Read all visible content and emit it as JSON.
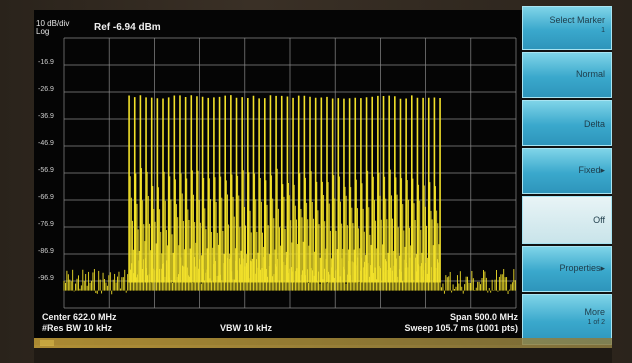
{
  "header": {
    "scale": "10 dB/div",
    "scale_mode": "Log",
    "ref_level": "Ref -6.94 dBm"
  },
  "y_axis_labels": [
    "-16.9",
    "-26.9",
    "-36.9",
    "-46.9",
    "-56.9",
    "-66.9",
    "-76.9",
    "-86.9",
    "-96.9"
  ],
  "footer": {
    "center": "Center 622.0 MHz",
    "span": "Span 500.0 MHz",
    "res_bw": "#Res BW 10 kHz",
    "vbw": "VBW 10 kHz",
    "sweep": "Sweep  105.7 ms (1001 pts)"
  },
  "softkeys": {
    "title": "Select Marker",
    "title_sub": "1",
    "normal": "Normal",
    "delta": "Delta",
    "fixed": "Fixed▸",
    "off": "Off",
    "properties": "Properties▸",
    "more": "More",
    "more_sub": "1 of 2"
  },
  "colors": {
    "trace": "#f2e12a",
    "softkey": "#3aa8cc",
    "grid": "#8a8a8a"
  },
  "chart_data": {
    "type": "line",
    "ylim": [
      -106.94,
      -6.94
    ],
    "xlim": [
      372.0,
      872.0
    ],
    "grid": true,
    "carriers": {
      "start_mhz": 444,
      "end_mhz": 788,
      "count": 56,
      "peak_dbm": -28.0,
      "floor_dbm": -97.5
    }
  }
}
